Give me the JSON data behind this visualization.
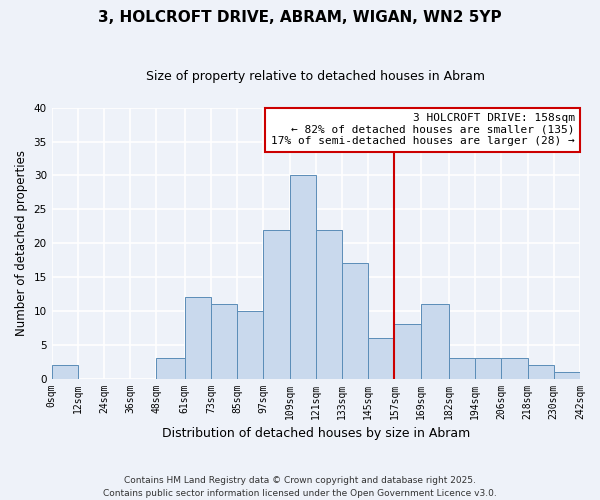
{
  "title1": "3, HOLCROFT DRIVE, ABRAM, WIGAN, WN2 5YP",
  "title2": "Size of property relative to detached houses in Abram",
  "xlabel": "Distribution of detached houses by size in Abram",
  "ylabel": "Number of detached properties",
  "bin_edges": [
    0,
    12,
    24,
    36,
    48,
    61,
    73,
    85,
    97,
    109,
    121,
    133,
    145,
    157,
    169,
    182,
    194,
    206,
    218,
    230,
    242
  ],
  "bar_heights": [
    2,
    0,
    0,
    0,
    3,
    12,
    11,
    10,
    22,
    30,
    22,
    17,
    6,
    8,
    11,
    3,
    3,
    3,
    2,
    1
  ],
  "tick_labels": [
    "0sqm",
    "12sqm",
    "24sqm",
    "36sqm",
    "48sqm",
    "61sqm",
    "73sqm",
    "85sqm",
    "97sqm",
    "109sqm",
    "121sqm",
    "133sqm",
    "145sqm",
    "157sqm",
    "169sqm",
    "182sqm",
    "194sqm",
    "206sqm",
    "218sqm",
    "230sqm",
    "242sqm"
  ],
  "bar_color": "#c9d9ed",
  "bar_edge_color": "#5b8db8",
  "vline_x": 157,
  "vline_color": "#cc0000",
  "annotation_title": "3 HOLCROFT DRIVE: 158sqm",
  "annotation_line1": "← 82% of detached houses are smaller (135)",
  "annotation_line2": "17% of semi-detached houses are larger (28) →",
  "annotation_box_color": "#ffffff",
  "annotation_box_edge": "#cc0000",
  "ylim": [
    0,
    40
  ],
  "yticks": [
    0,
    5,
    10,
    15,
    20,
    25,
    30,
    35,
    40
  ],
  "footnote1": "Contains HM Land Registry data © Crown copyright and database right 2025.",
  "footnote2": "Contains public sector information licensed under the Open Government Licence v3.0.",
  "bg_color": "#eef2f9",
  "plot_bg_color": "#eef2f9",
  "grid_color": "#ffffff",
  "title_fontsize": 11,
  "subtitle_fontsize": 9,
  "tick_fontsize": 7,
  "ylabel_fontsize": 8.5,
  "xlabel_fontsize": 9,
  "ann_fontsize": 8,
  "footnote_fontsize": 6.5
}
